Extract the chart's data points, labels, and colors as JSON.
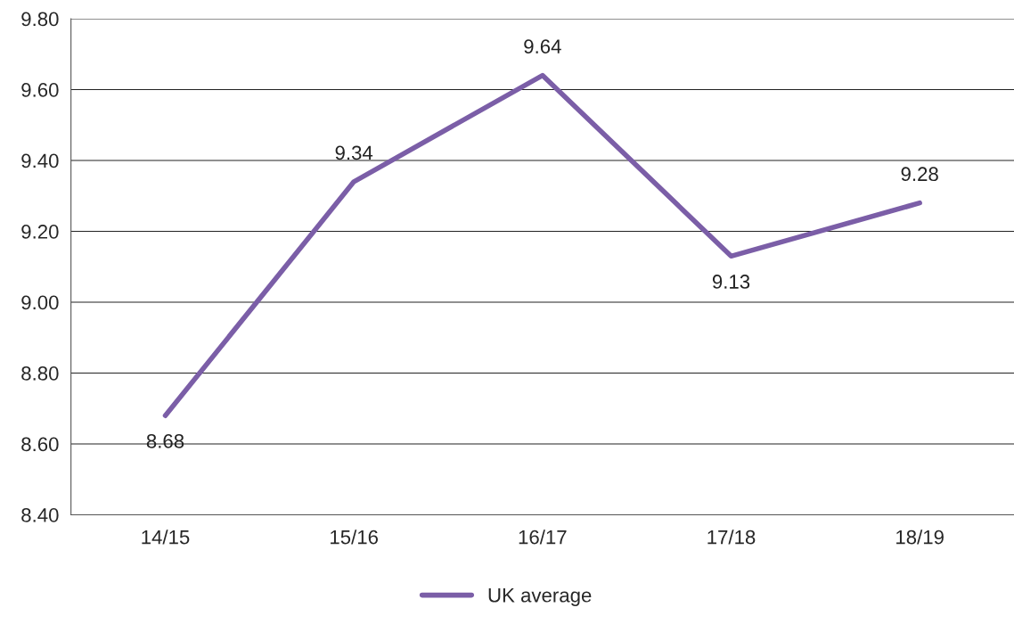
{
  "chart_data": {
    "type": "line",
    "categories": [
      "14/15",
      "15/16",
      "16/17",
      "17/18",
      "18/19"
    ],
    "series": [
      {
        "name": "UK average",
        "color": "#7b5ea7",
        "values": [
          8.68,
          9.34,
          9.64,
          9.13,
          9.28
        ]
      }
    ],
    "ylim": [
      8.4,
      9.8
    ],
    "yticks": [
      {
        "value": 8.4,
        "label": "8.40"
      },
      {
        "value": 8.6,
        "label": "8.60"
      },
      {
        "value": 8.8,
        "label": "8.80"
      },
      {
        "value": 9.0,
        "label": "9.00"
      },
      {
        "value": 9.2,
        "label": "9.20"
      },
      {
        "value": 9.4,
        "label": "9.40"
      },
      {
        "value": 9.6,
        "label": "9.60"
      },
      {
        "value": 9.8,
        "label": "9.80"
      }
    ],
    "grid": "y",
    "legend": "bottom",
    "data_labels": true,
    "marker": "none",
    "line_style": "solid"
  }
}
